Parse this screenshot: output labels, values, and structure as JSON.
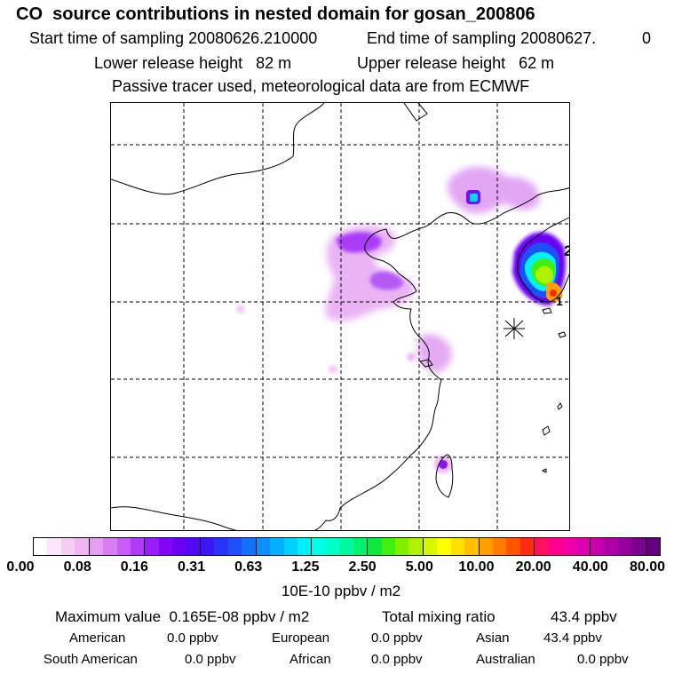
{
  "title": "CO  source contributions in nested domain for gosan_200806",
  "header": {
    "start_label": "Start time of sampling 20080626.210000",
    "end_label": "End time of sampling 20080627.",
    "end_suffix": "0",
    "lower_release": "Lower release height   82 m",
    "upper_release": "Upper release height   62 m",
    "tracer_note": "Passive tracer used, meteorological data are from ECMWF"
  },
  "map": {
    "site_labels": [
      "2",
      "1"
    ]
  },
  "colorbar": {
    "colors": [
      "#ffffff",
      "#fbe6fb",
      "#f5cdf5",
      "#efb6f3",
      "#e59ef2",
      "#d97df3",
      "#c85cf4",
      "#b23af6",
      "#9a1cf8",
      "#8205f4",
      "#6a02f0",
      "#5208f2",
      "#3c18f4",
      "#2a32f6",
      "#1d50f7",
      "#1570f8",
      "#0c90f9",
      "#05b0fb",
      "#00d0fd",
      "#00f0ff",
      "#00ffe8",
      "#00ffc8",
      "#00f8a0",
      "#00f070",
      "#10e840",
      "#40f010",
      "#80f000",
      "#b0f000",
      "#d8f800",
      "#ffff00",
      "#ffe000",
      "#ffc000",
      "#ffa000",
      "#ff7c00",
      "#ff5400",
      "#ff2a10",
      "#ff1060",
      "#ff0090",
      "#f000a8",
      "#dc00b0",
      "#c600ac",
      "#ae00a8",
      "#9600a0",
      "#7c0090",
      "#640080"
    ],
    "tick_labels": [
      "0.00",
      "0.08",
      "0.16",
      "0.31",
      "0.63",
      "1.25",
      "2.50",
      "5.00",
      "10.00",
      "20.00",
      "40.00",
      "80.00"
    ],
    "units": "10E-10 ppbv / m2"
  },
  "stats": {
    "max_value": "Maximum value  0.165E-08 ppbv / m2",
    "total_mixing": "Total mixing ratio",
    "total_value": "43.4 ppbv",
    "american_label": "American",
    "american_value": "0.0 ppbv",
    "european_label": "European",
    "european_value": "0.0 ppbv",
    "asian_label": "Asian",
    "asian_value": "43.4 ppbv",
    "south_american_label": "South American",
    "south_american_value": "0.0 ppbv",
    "african_label": "African",
    "african_value": "0.0 ppbv",
    "australian_label": "Australian",
    "australian_value": "0.0 ppbv"
  }
}
